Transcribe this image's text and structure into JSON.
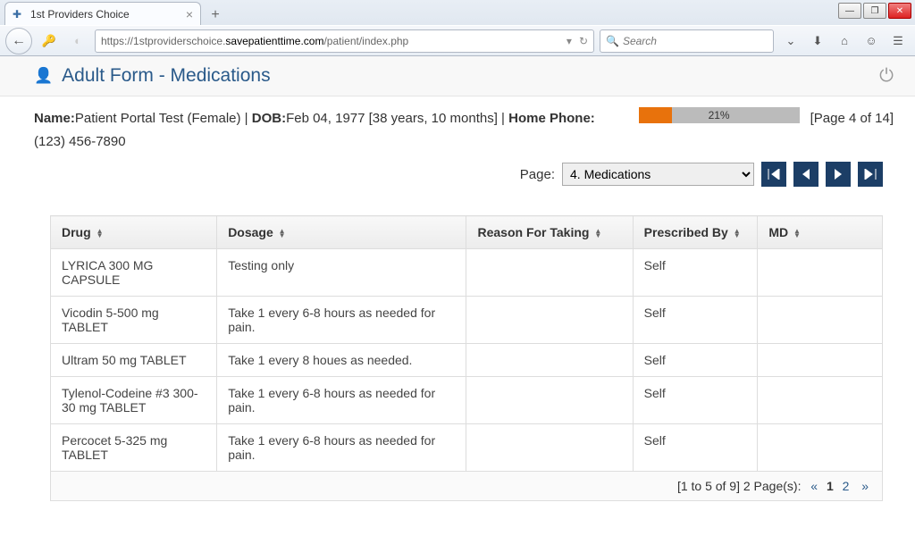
{
  "browser": {
    "tab_title": "1st Providers Choice",
    "url_prefix": "https://1stproviderschoice.",
    "url_domain": "savepatienttime.com",
    "url_path": "/patient/index.php",
    "search_placeholder": "Search"
  },
  "header": {
    "title": "Adult Form - Medications"
  },
  "patient": {
    "name_label": "Name:",
    "name_value": "Patient Portal Test (Female)",
    "dob_label": "DOB:",
    "dob_value": "Feb 04, 1977  [38 years, 10 months]",
    "phone_label": "Home Phone:",
    "phone_value": "(123) 456-7890"
  },
  "progress": {
    "percent": 21,
    "label": "21%",
    "page_label": "[Page 4 of 14]"
  },
  "page_nav": {
    "label": "Page:",
    "selected": "4. Medications"
  },
  "table": {
    "columns": [
      "Drug",
      "Dosage",
      "Reason For Taking",
      "Prescribed By",
      "MD"
    ],
    "col_widths": [
      "20%",
      "30%",
      "20%",
      "15%",
      "15%"
    ],
    "rows": [
      {
        "drug": "LYRICA 300 MG CAPSULE",
        "dosage": "Testing only",
        "reason": "",
        "prescribed": "Self",
        "md": ""
      },
      {
        "drug": "Vicodin 5-500 mg TABLET",
        "dosage": "Take 1 every 6-8 hours as needed for pain.",
        "reason": "",
        "prescribed": "Self",
        "md": ""
      },
      {
        "drug": "Ultram 50 mg TABLET",
        "dosage": "Take 1 every 8 houes as needed.",
        "reason": "",
        "prescribed": "Self",
        "md": ""
      },
      {
        "drug": "Tylenol-Codeine #3 300-30 mg TABLET",
        "dosage": "Take 1 every 6-8 hours as needed for pain.",
        "reason": "",
        "prescribed": "Self",
        "md": ""
      },
      {
        "drug": "Percocet 5-325 mg TABLET",
        "dosage": "Take 1 every 6-8 hours as needed for pain.",
        "reason": "",
        "prescribed": "Self",
        "md": ""
      }
    ]
  },
  "footer": {
    "range": "[1 to 5 of 9] 2 Page(s):",
    "prev": "«",
    "current": "1",
    "next_page": "2",
    "next": "»"
  },
  "colors": {
    "accent_blue": "#2a5a8a",
    "nav_button": "#1c3e66",
    "progress_fill": "#e8720c",
    "progress_bg": "#bbbbbb"
  }
}
